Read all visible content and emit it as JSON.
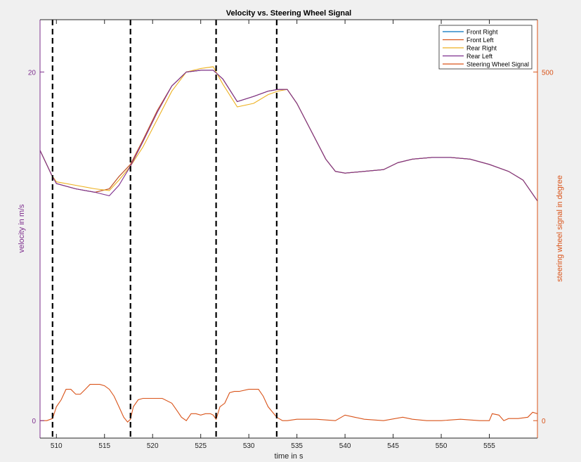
{
  "chart_data": {
    "type": "line",
    "title": "Velocity vs. Steering Wheel Signal",
    "xlabel": "time in s",
    "ylabel_left": "velocity in m/s",
    "ylabel_right": "steering wheel signal in degree",
    "xlim": [
      508.3,
      560.0
    ],
    "ylim_left": [
      -1.0,
      23.0
    ],
    "ylim_right": [
      -25,
      575
    ],
    "x_ticks": [
      510,
      515,
      520,
      525,
      530,
      535,
      540,
      545,
      550,
      555
    ],
    "y_ticks_left": [
      0,
      20
    ],
    "y_ticks_right": [
      0,
      500
    ],
    "grid": false,
    "legend_position": "top-right",
    "vertical_markers": [
      509.6,
      517.7,
      526.6,
      532.9
    ],
    "series": [
      {
        "name": "Front Right",
        "axis": "left",
        "color": "#0072bd",
        "x": [
          508.3,
          509.5,
          510.0,
          512.0,
          514.0,
          515.5,
          516.5,
          517.7,
          519.0,
          520.5,
          522.0,
          523.5,
          525.0,
          526.3,
          527.3,
          528.8,
          530.5,
          532.0,
          533.0,
          534.0,
          535.0,
          536.5,
          538.0,
          539.0,
          540.0,
          542.0,
          544.0,
          545.5,
          547.0,
          549.0,
          551.0,
          553.0,
          555.0,
          557.0,
          558.5,
          560.0
        ],
        "values": [
          15.5,
          14.1,
          13.6,
          13.3,
          13.1,
          13.3,
          14.0,
          14.7,
          16.1,
          17.8,
          19.2,
          20.0,
          20.1,
          20.1,
          19.6,
          18.3,
          18.6,
          18.9,
          19.0,
          19.0,
          18.2,
          16.6,
          15.0,
          14.3,
          14.2,
          14.3,
          14.4,
          14.8,
          15.0,
          15.1,
          15.1,
          15.0,
          14.7,
          14.3,
          13.8,
          12.6
        ]
      },
      {
        "name": "Front Left",
        "axis": "left",
        "color": "#d95319",
        "x": [
          508.3,
          509.5,
          510.0,
          512.0,
          514.0,
          515.5,
          516.5,
          517.7,
          519.0,
          520.5,
          522.0,
          523.5,
          525.0,
          526.3,
          527.3,
          528.8,
          530.5,
          532.0,
          533.0,
          534.0,
          535.0,
          536.5,
          538.0,
          539.0,
          540.0,
          542.0,
          544.0,
          545.5,
          547.0,
          549.0,
          551.0,
          553.0,
          555.0,
          557.0,
          558.5,
          560.0
        ],
        "values": [
          15.5,
          14.1,
          13.6,
          13.3,
          13.1,
          13.3,
          14.0,
          14.7,
          16.1,
          17.8,
          19.2,
          20.0,
          20.1,
          20.1,
          19.6,
          18.3,
          18.6,
          18.9,
          19.0,
          19.0,
          18.2,
          16.6,
          15.0,
          14.3,
          14.2,
          14.3,
          14.4,
          14.8,
          15.0,
          15.1,
          15.1,
          15.0,
          14.7,
          14.3,
          13.8,
          12.6
        ]
      },
      {
        "name": "Rear Right",
        "axis": "left",
        "color": "#edb120",
        "x": [
          508.3,
          509.5,
          510.0,
          512.0,
          514.0,
          515.5,
          516.5,
          517.7,
          519.0,
          520.5,
          522.0,
          523.5,
          525.0,
          526.3,
          527.3,
          528.8,
          530.5,
          532.0,
          533.0,
          534.0,
          535.0,
          536.5,
          538.0,
          539.0,
          540.0,
          542.0,
          544.0,
          545.5,
          547.0,
          549.0,
          551.0,
          553.0,
          555.0,
          557.0,
          558.5,
          560.0
        ],
        "values": [
          15.5,
          14.1,
          13.7,
          13.5,
          13.3,
          13.2,
          13.8,
          14.6,
          15.7,
          17.3,
          18.9,
          20.0,
          20.2,
          20.3,
          19.3,
          18.0,
          18.2,
          18.7,
          18.9,
          19.0,
          18.2,
          16.6,
          15.0,
          14.3,
          14.2,
          14.3,
          14.4,
          14.8,
          15.0,
          15.1,
          15.1,
          15.0,
          14.7,
          14.3,
          13.8,
          12.6
        ]
      },
      {
        "name": "Rear Left",
        "axis": "left",
        "color": "#7e2f8e",
        "x": [
          508.3,
          509.5,
          510.0,
          512.0,
          514.0,
          515.5,
          516.5,
          517.7,
          519.0,
          520.5,
          522.0,
          523.5,
          525.0,
          526.3,
          527.3,
          528.8,
          530.5,
          532.0,
          533.0,
          534.0,
          535.0,
          536.5,
          538.0,
          539.0,
          540.0,
          542.0,
          544.0,
          545.5,
          547.0,
          549.0,
          551.0,
          553.0,
          555.0,
          557.0,
          558.5,
          560.0
        ],
        "values": [
          15.5,
          14.1,
          13.6,
          13.3,
          13.1,
          12.9,
          13.5,
          14.6,
          16.0,
          17.7,
          19.2,
          20.0,
          20.1,
          20.1,
          19.6,
          18.3,
          18.6,
          18.9,
          19.0,
          19.0,
          18.2,
          16.6,
          15.0,
          14.3,
          14.2,
          14.3,
          14.4,
          14.8,
          15.0,
          15.1,
          15.1,
          15.0,
          14.7,
          14.3,
          13.8,
          12.6
        ]
      },
      {
        "name": "Steering Wheel Signal",
        "axis": "right",
        "color": "#d95319",
        "x": [
          508.3,
          509.0,
          509.6,
          510.0,
          510.5,
          511.0,
          511.5,
          512.0,
          512.5,
          513.0,
          513.5,
          514.0,
          514.5,
          515.0,
          515.5,
          516.0,
          516.5,
          517.0,
          517.4,
          517.7,
          518.0,
          518.5,
          519.0,
          519.5,
          520.0,
          521.0,
          522.0,
          522.5,
          523.0,
          523.5,
          524.0,
          524.5,
          525.0,
          525.5,
          526.0,
          526.3,
          526.6,
          527.0,
          527.5,
          528.0,
          528.5,
          529.0,
          530.0,
          531.0,
          531.5,
          532.0,
          532.9,
          533.5,
          534.0,
          535.0,
          537.0,
          539.0,
          540.0,
          541.0,
          542.0,
          544.0,
          546.0,
          547.0,
          548.5,
          550.0,
          552.0,
          554.0,
          555.0,
          555.3,
          556.0,
          556.5,
          557.0,
          558.0,
          559.0,
          559.5,
          560.0
        ],
        "values": [
          0,
          0,
          3,
          20,
          30,
          45,
          45,
          38,
          38,
          45,
          52,
          52,
          52,
          50,
          45,
          35,
          20,
          5,
          -2,
          2,
          20,
          30,
          32,
          32,
          32,
          32,
          25,
          15,
          5,
          0,
          10,
          10,
          8,
          10,
          10,
          8,
          2,
          20,
          25,
          40,
          42,
          42,
          45,
          45,
          35,
          20,
          5,
          0,
          0,
          2,
          2,
          0,
          8,
          5,
          2,
          0,
          5,
          2,
          0,
          0,
          2,
          0,
          0,
          10,
          8,
          0,
          3,
          3,
          5,
          12,
          10
        ]
      }
    ]
  }
}
